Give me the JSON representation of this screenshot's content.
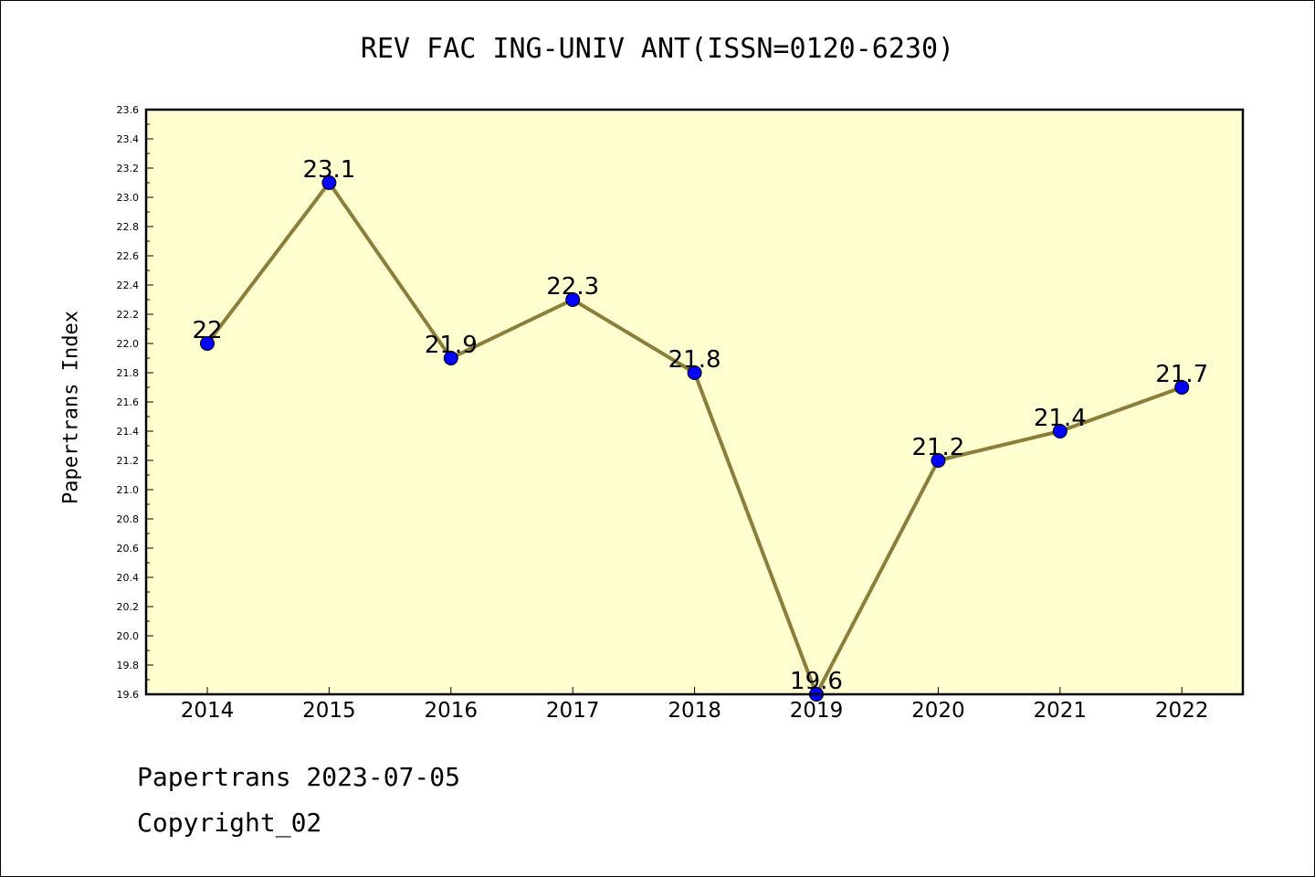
{
  "chart_data": {
    "type": "line",
    "title": "REV FAC ING-UNIV ANT(ISSN=0120-6230)",
    "ylabel": "Papertrans Index",
    "xlabel": "",
    "categories": [
      "2014",
      "2015",
      "2016",
      "2017",
      "2018",
      "2019",
      "2020",
      "2021",
      "2022"
    ],
    "values": [
      22.0,
      23.1,
      21.9,
      22.3,
      21.8,
      19.6,
      21.2,
      21.4,
      21.7
    ],
    "data_labels": [
      "22",
      "23.1",
      "21.9",
      "22.3",
      "21.8",
      "19.6",
      "21.2",
      "21.4",
      "21.7"
    ],
    "ylim": [
      19.6,
      23.6
    ],
    "yticks": [
      "19.6",
      "19.8",
      "20.0",
      "20.2",
      "20.4",
      "20.6",
      "20.8",
      "21.0",
      "21.2",
      "21.4",
      "21.6",
      "21.8",
      "22.0",
      "22.2",
      "22.4",
      "22.6",
      "22.8",
      "23.0",
      "23.2",
      "23.4",
      "23.6"
    ],
    "grid": false,
    "colors": {
      "background": "#ffffd0",
      "line": "#8b7d3a",
      "marker": "#0000ff"
    }
  },
  "footer": {
    "line1": "Papertrans 2023-07-05",
    "line2": "Copyright_02"
  }
}
